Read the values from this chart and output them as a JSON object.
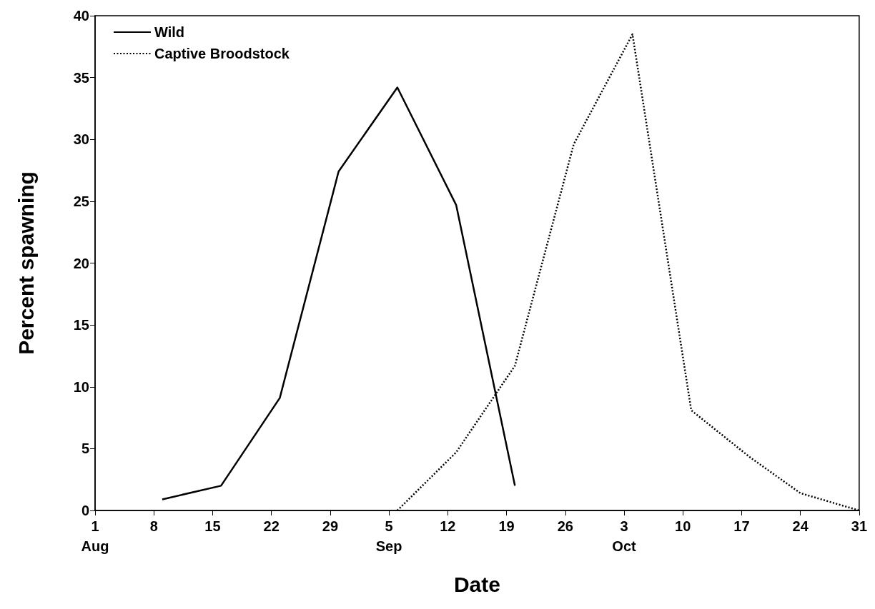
{
  "chart_data": {
    "type": "line",
    "xlabel": "Date",
    "ylabel": "Percent spawning",
    "xlim": [
      "--08-01",
      "--10-31"
    ],
    "xticks": [
      {
        "value": "--08-01",
        "label": "1\nAug"
      },
      {
        "value": "--08-08",
        "label": "8"
      },
      {
        "value": "--08-15",
        "label": "15"
      },
      {
        "value": "--08-22",
        "label": "22"
      },
      {
        "value": "--08-29",
        "label": "29"
      },
      {
        "value": "--09-05",
        "label": "5\nSep"
      },
      {
        "value": "--09-12",
        "label": "12"
      },
      {
        "value": "--09-19",
        "label": "19"
      },
      {
        "value": "--09-26",
        "label": "26"
      },
      {
        "value": "--10-03",
        "label": "3\nOct"
      },
      {
        "value": "--10-10",
        "label": "10"
      },
      {
        "value": "--10-17",
        "label": "17"
      },
      {
        "value": "--10-24",
        "label": "24"
      },
      {
        "value": "--10-31",
        "label": "31"
      }
    ],
    "ylim": [
      0,
      40
    ],
    "yticks": [
      0,
      5,
      10,
      15,
      20,
      25,
      30,
      35,
      40
    ],
    "grid": false,
    "legend": "top left",
    "marker": "none",
    "series": [
      {
        "name": "Wild",
        "color": "#000000",
        "line_style": "solid",
        "x": [
          "--08-09",
          "--08-16",
          "--08-23",
          "--08-30",
          "--09-06",
          "--09-13",
          "--09-20"
        ],
        "values": [
          0.9,
          2.0,
          9.1,
          27.4,
          34.2,
          24.7,
          2.0
        ]
      },
      {
        "name": "Captive Broodstock",
        "color": "#000000",
        "line_style": "dotted",
        "x": [
          "--09-06",
          "--09-13",
          "--09-20",
          "--09-27",
          "--10-04",
          "--10-11",
          "--10-18",
          "--10-24",
          "--10-31"
        ],
        "values": [
          0,
          4.7,
          11.7,
          29.6,
          38.5,
          8.1,
          4.3,
          1.4,
          0
        ]
      }
    ]
  }
}
